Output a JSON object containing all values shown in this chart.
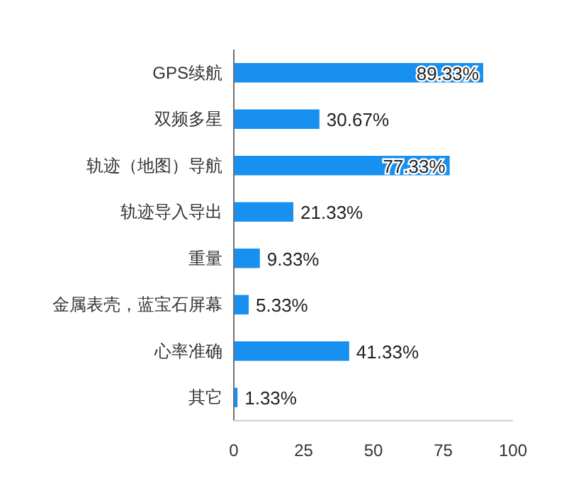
{
  "chart_data": {
    "type": "bar",
    "orientation": "horizontal",
    "categories": [
      "GPS续航",
      "双频多星",
      "轨迹（地图）导航",
      "轨迹导入导出",
      "重量",
      "金属表壳，蓝宝石屏幕",
      "心率准确",
      "其它"
    ],
    "values": [
      89.33,
      30.67,
      77.33,
      21.33,
      9.33,
      5.33,
      41.33,
      1.33
    ],
    "value_labels": [
      "89.33%",
      "30.67%",
      "77.33%",
      "21.33%",
      "9.33%",
      "5.33%",
      "41.33%",
      "1.33%"
    ],
    "color": "#1890f0",
    "xlim": [
      0,
      100
    ],
    "xticks": [
      0,
      25,
      50,
      75,
      100
    ],
    "grid": false
  }
}
